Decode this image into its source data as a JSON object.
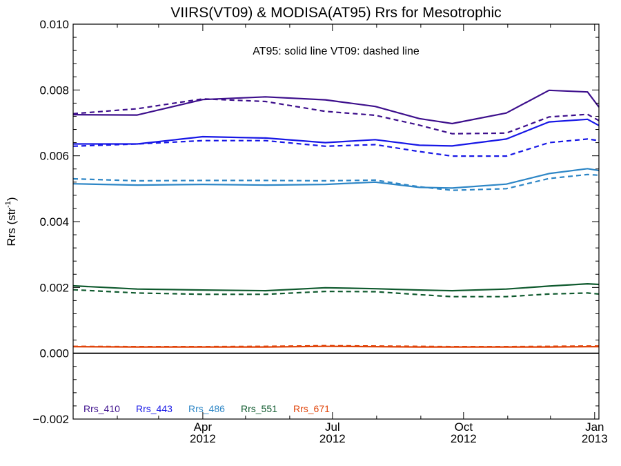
{
  "chart_data": {
    "type": "line",
    "title": "VIIRS(VT09) & MODISA(AT95)  Rrs for Mesotrophic",
    "annotation": "AT95: solid line   VT09: dashed line",
    "ylabel": "Rrs (str",
    "ylabel_sup": "-1",
    "ylabel_close": ")",
    "xlabel": "",
    "ylim": [
      -0.002,
      0.01
    ],
    "xlim": [
      "2012-01-01",
      "2013-01-04"
    ],
    "yticks": [
      -0.002,
      0.0,
      0.002,
      0.004,
      0.006,
      0.008,
      0.01
    ],
    "ytick_labels": [
      "−0.002",
      "0.000",
      "0.002",
      "0.004",
      "0.006",
      "0.008",
      "0.010"
    ],
    "xticks": [
      {
        "date": "2012-04-01",
        "line1": "Apr",
        "line2": "2012"
      },
      {
        "date": "2012-07-01",
        "line1": "Jul",
        "line2": "2012"
      },
      {
        "date": "2012-10-01",
        "line1": "Oct",
        "line2": "2012"
      },
      {
        "date": "2013-01-01",
        "line1": "Jan",
        "line2": "2013"
      }
    ],
    "x": [
      "2012-01-01",
      "2012-02-15",
      "2012-04-01",
      "2012-05-15",
      "2012-06-26",
      "2012-07-31",
      "2012-08-31",
      "2012-09-23",
      "2012-10-31",
      "2012-11-30",
      "2012-12-27",
      "2013-01-04"
    ],
    "zero_line": 0.0,
    "grid": false,
    "legend_placement": "bottom-left",
    "series": [
      {
        "name": "Rrs_410",
        "color": "#3d0f8c",
        "style": "solid",
        "values": [
          0.00725,
          0.00724,
          0.00771,
          0.00779,
          0.0077,
          0.0075,
          0.00713,
          0.00698,
          0.0073,
          0.00799,
          0.00794,
          0.00748
        ]
      },
      {
        "name": "Rrs_410",
        "color": "#3d0f8c",
        "style": "dashed",
        "values": [
          0.00728,
          0.00743,
          0.00773,
          0.00765,
          0.00735,
          0.00723,
          0.00693,
          0.00667,
          0.00669,
          0.00718,
          0.00726,
          0.00707
        ]
      },
      {
        "name": "Rrs_443",
        "color": "#1717e6",
        "style": "solid",
        "values": [
          0.00636,
          0.00636,
          0.00658,
          0.00654,
          0.0064,
          0.00649,
          0.00632,
          0.0063,
          0.00651,
          0.00703,
          0.00711,
          0.00692
        ]
      },
      {
        "name": "Rrs_443",
        "color": "#1717e6",
        "style": "dashed",
        "values": [
          0.00629,
          0.00636,
          0.00646,
          0.00646,
          0.00629,
          0.00634,
          0.00613,
          0.00599,
          0.00599,
          0.0064,
          0.00651,
          0.00646
        ]
      },
      {
        "name": "Rrs_486",
        "color": "#2d86c6",
        "style": "solid",
        "values": [
          0.00515,
          0.00511,
          0.00513,
          0.00511,
          0.00513,
          0.0052,
          0.00504,
          0.00502,
          0.00514,
          0.00546,
          0.00561,
          0.00555
        ]
      },
      {
        "name": "Rrs_486",
        "color": "#2d86c6",
        "style": "dashed",
        "values": [
          0.0053,
          0.00524,
          0.00525,
          0.00525,
          0.00524,
          0.00526,
          0.00506,
          0.00495,
          0.005,
          0.00531,
          0.00543,
          0.00541
        ]
      },
      {
        "name": "Rrs_551",
        "color": "#0f5a2e",
        "style": "solid",
        "values": [
          0.00205,
          0.00195,
          0.00192,
          0.0019,
          0.00199,
          0.00196,
          0.00192,
          0.0019,
          0.00195,
          0.00204,
          0.00211,
          0.00209
        ]
      },
      {
        "name": "Rrs_551",
        "color": "#0f5a2e",
        "style": "dashed",
        "values": [
          0.00193,
          0.00183,
          0.00179,
          0.00179,
          0.00188,
          0.00187,
          0.00178,
          0.00172,
          0.00172,
          0.0018,
          0.00183,
          0.0018
        ]
      },
      {
        "name": "Rrs_671",
        "color": "#e0440a",
        "style": "solid",
        "values": [
          0.0002,
          0.00019,
          0.00019,
          0.00019,
          0.00021,
          0.0002,
          0.00019,
          0.00019,
          0.00019,
          0.00019,
          0.0002,
          0.0002
        ]
      },
      {
        "name": "Rrs_671",
        "color": "#e0440a",
        "style": "dashed",
        "values": [
          0.00021,
          0.0002,
          0.0002,
          0.00021,
          0.00023,
          0.00022,
          0.00021,
          0.0002,
          0.0002,
          0.00021,
          0.00022,
          0.00022
        ]
      }
    ],
    "legend": [
      {
        "label": "Rrs_410",
        "color": "#3d0f8c"
      },
      {
        "label": "Rrs_443",
        "color": "#1717e6"
      },
      {
        "label": "Rrs_486",
        "color": "#2d86c6"
      },
      {
        "label": "Rrs_551",
        "color": "#0f5a2e"
      },
      {
        "label": "Rrs_671",
        "color": "#e0440a"
      }
    ]
  }
}
